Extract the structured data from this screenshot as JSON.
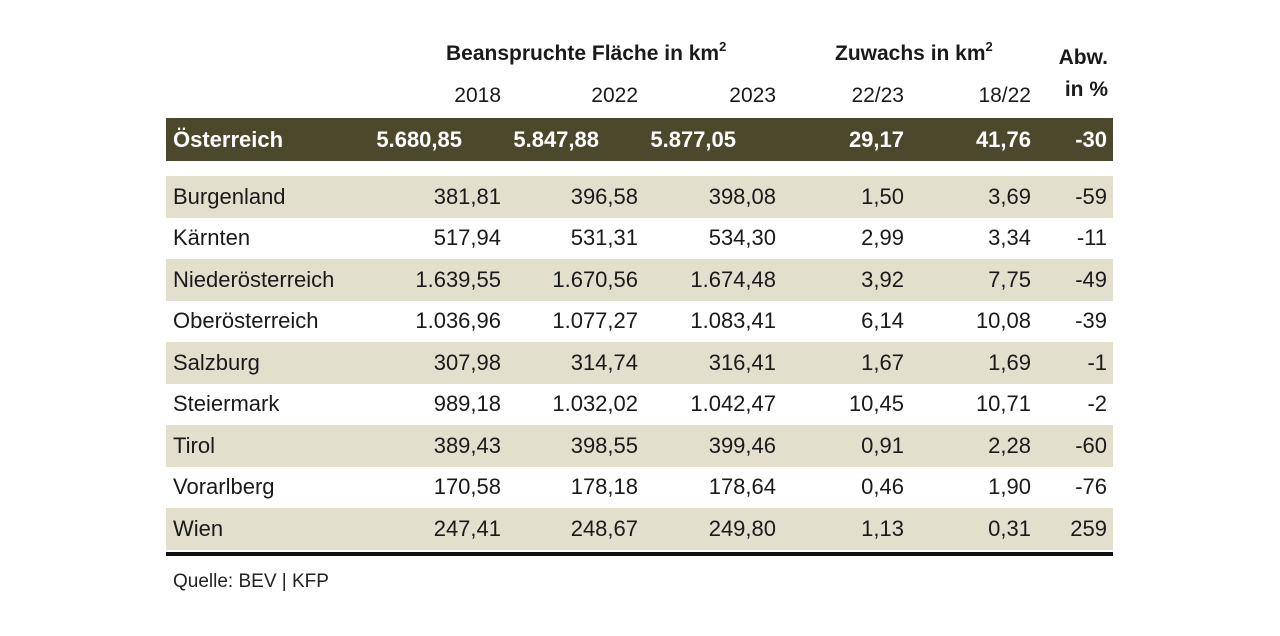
{
  "header": {
    "group_area": "Beanspruchte Fläche in km",
    "group_area_sup": "2",
    "group_growth": "Zuwachs in km",
    "group_growth_sup": "2",
    "abw_line1": "Abw.",
    "abw_line2": "in %",
    "columns": [
      "2018",
      "2022",
      "2023",
      "22/23",
      "18/22"
    ]
  },
  "total": {
    "name": "Österreich",
    "values": [
      "5.680,85",
      "5.847,88",
      "5.877,05",
      "29,17",
      "41,76",
      "-30"
    ]
  },
  "rows": [
    {
      "name": "Burgenland",
      "values": [
        "381,81",
        "396,58",
        "398,08",
        "1,50",
        "3,69",
        "-59"
      ]
    },
    {
      "name": "Kärnten",
      "values": [
        "517,94",
        "531,31",
        "534,30",
        "2,99",
        "3,34",
        "-11"
      ]
    },
    {
      "name": "Niederösterreich",
      "values": [
        "1.639,55",
        "1.670,56",
        "1.674,48",
        "3,92",
        "7,75",
        "-49"
      ]
    },
    {
      "name": "Oberösterreich",
      "values": [
        "1.036,96",
        "1.077,27",
        "1.083,41",
        "6,14",
        "10,08",
        "-39"
      ]
    },
    {
      "name": "Salzburg",
      "values": [
        "307,98",
        "314,74",
        "316,41",
        "1,67",
        "1,69",
        "-1"
      ]
    },
    {
      "name": "Steiermark",
      "values": [
        "989,18",
        "1.032,02",
        "1.042,47",
        "10,45",
        "10,71",
        "-2"
      ]
    },
    {
      "name": "Tirol",
      "values": [
        "389,43",
        "398,55",
        "399,46",
        "0,91",
        "2,28",
        "-60"
      ]
    },
    {
      "name": "Vorarlberg",
      "values": [
        "170,58",
        "178,18",
        "178,64",
        "0,46",
        "1,90",
        "-76"
      ]
    },
    {
      "name": "Wien",
      "values": [
        "247,41",
        "248,67",
        "249,80",
        "1,13",
        "0,31",
        "259"
      ]
    }
  ],
  "source": "Quelle: BEV | KFP",
  "colors": {
    "total_bg": "#4c482b",
    "stripe_bg": "#e3dfcd",
    "rule": "#111111"
  }
}
